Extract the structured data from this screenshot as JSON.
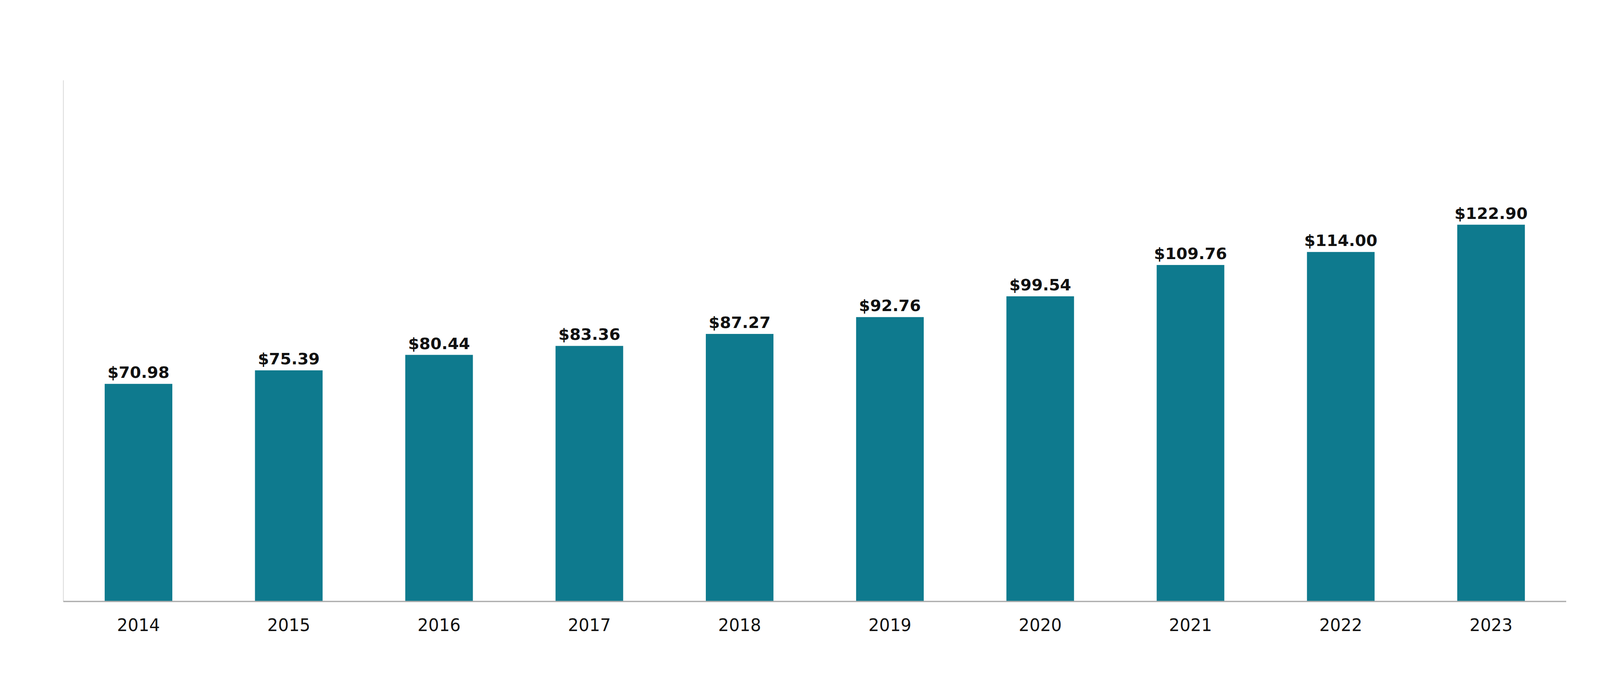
{
  "chart_data": {
    "type": "bar",
    "categories": [
      "2014",
      "2015",
      "2016",
      "2017",
      "2018",
      "2019",
      "2020",
      "2021",
      "2022",
      "2023"
    ],
    "values": [
      70.98,
      75.39,
      80.44,
      83.36,
      87.27,
      92.76,
      99.54,
      109.76,
      114.0,
      122.9
    ],
    "value_labels": [
      "$70.98",
      "$75.39",
      "$80.44",
      "$83.36",
      "$87.27",
      "$92.76",
      "$99.54",
      "$109.76",
      "$114.00",
      "$122.90"
    ],
    "color": "#0e7a8e",
    "ylim": [
      0,
      170
    ],
    "data_labels": true,
    "tick_labels": "x",
    "grid": false
  }
}
